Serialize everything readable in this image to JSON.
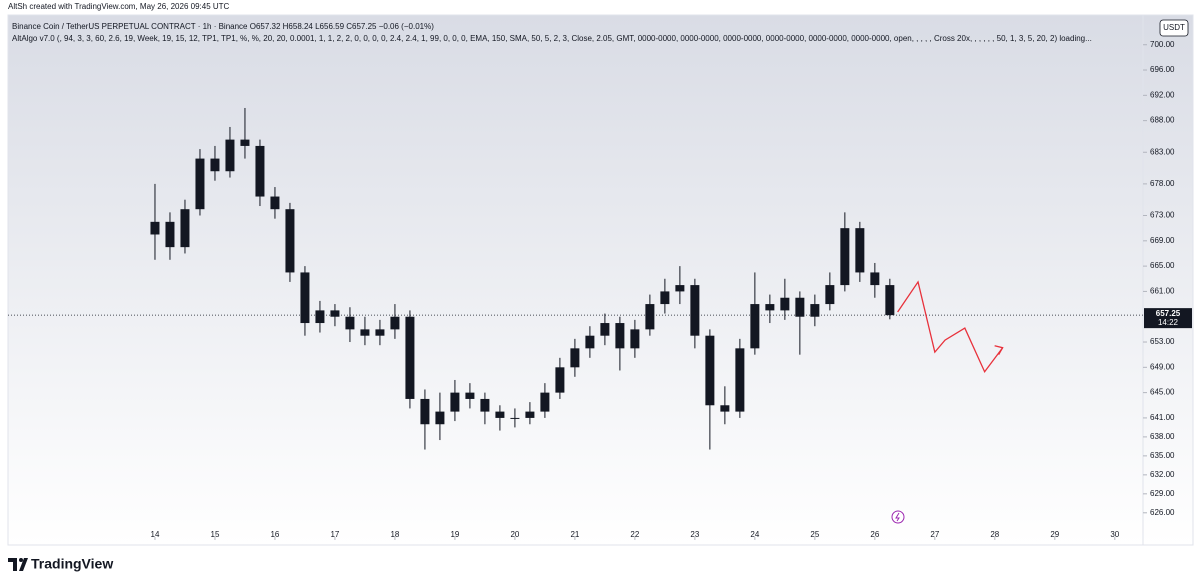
{
  "header": "AltSh created with TradingView.com, May 26, 2026 09:45 UTC",
  "chart_data": {
    "type": "candlestick",
    "title": "Binance Coin / TetherUS PERPETUAL CONTRACT · 1h · Binance  O657.32  H658.24  L656.59  C657.25  −0.06 (−0.01%)",
    "subtitle": "AltAlgo v7.0 (, 94, 3, 3, 60, 2.6, 19, Week, 19, 15, 12, TP1, TP1, %, %, 20, 20, 0.0001, 1, 1, 2, 2, 0, 0, 0, 0, 2.4, 2.4, 1, 99, 0, 0, 0, EMA, 150, SMA, 50, 5, 2, 3, Close, 2.05, GMT, 0000-0000, 0000-0000, 0000-0000, 0000-0000, 0000-0000, 0000-0000, open, , , , , Cross 20x, , , , , , 50, 1, 3, 5, 20, 2) loading...",
    "currency": "USDT",
    "color": "#131722",
    "x": [
      14,
      14.25,
      14.5,
      14.75,
      15,
      15.25,
      15.5,
      15.75,
      16,
      16.25,
      16.5,
      16.75,
      17,
      17.25,
      17.5,
      17.75,
      18,
      18.25,
      18.5,
      18.75,
      19,
      19.25,
      19.5,
      19.75,
      20,
      20.25,
      20.5,
      20.75,
      21,
      21.25,
      21.5,
      21.75,
      22,
      22.25,
      22.5,
      22.75,
      23,
      23.25,
      23.5,
      23.75,
      24,
      24.25,
      24.5,
      24.75,
      25,
      25.25,
      25.5,
      25.75,
      26,
      26.25
    ],
    "open": [
      670,
      672,
      668,
      674,
      682,
      680,
      685,
      684,
      676,
      674,
      664,
      656,
      658,
      657,
      655,
      654,
      655,
      657,
      644,
      640,
      642,
      645,
      644,
      642,
      641,
      641,
      642,
      645,
      649,
      652,
      654,
      656,
      652,
      655,
      659,
      661,
      662,
      654,
      643,
      642,
      652,
      659,
      658,
      660,
      657,
      659,
      662,
      671,
      664,
      662
    ],
    "high": [
      678,
      673.5,
      675.5,
      683.5,
      684,
      687,
      690,
      685,
      677.5,
      675,
      665,
      659.5,
      659,
      658.5,
      657,
      656.5,
      659,
      658,
      645.5,
      645,
      647,
      646.5,
      645,
      643,
      642.5,
      643.5,
      646.5,
      650.5,
      653.5,
      655.5,
      657.5,
      657,
      656.5,
      660.5,
      663,
      665,
      663,
      655,
      646,
      653.5,
      664,
      660.5,
      663,
      661,
      660.5,
      664,
      673.5,
      672,
      665.5,
      663
    ],
    "low": [
      666,
      666,
      667,
      673,
      678.5,
      679,
      682,
      674.5,
      672.5,
      662.5,
      654,
      654.5,
      655.5,
      653,
      652.5,
      652.5,
      653.5,
      642.5,
      636,
      637.5,
      640.5,
      642.5,
      640,
      639,
      639.5,
      640,
      641,
      644,
      647.5,
      650.5,
      652.5,
      648.5,
      650.5,
      654,
      657.5,
      659,
      652,
      636,
      640,
      641,
      651,
      656,
      656.5,
      651,
      655.5,
      658,
      661,
      662.5,
      660,
      656.59
    ],
    "close": [
      672,
      668,
      674,
      682,
      680,
      685,
      684,
      676,
      674,
      664,
      656,
      658,
      657,
      655,
      654,
      655,
      657,
      644,
      640,
      642,
      645,
      644,
      642,
      641,
      641,
      642,
      645,
      649,
      652,
      654,
      656,
      652,
      655,
      659,
      661,
      662,
      654,
      643,
      642,
      652,
      659,
      658,
      660,
      657,
      659,
      662,
      671,
      664,
      662,
      657.25
    ],
    "last_price": 657.25,
    "countdown": "14:22",
    "forecast": {
      "color": "#e8313b",
      "x": [
        26.38,
        26.72,
        27.0,
        27.17,
        27.5,
        27.83,
        28.13
      ],
      "values": [
        657.75,
        662.5,
        651.4,
        653.3,
        655.2,
        648.3,
        652.1
      ]
    },
    "xlim": [
      11.55,
      30.47
    ],
    "xticks": [
      14,
      15,
      16,
      17,
      18,
      19,
      20,
      21,
      22,
      23,
      24,
      25,
      26,
      27,
      28,
      29,
      30
    ],
    "ylim": [
      621.7,
      704.7
    ],
    "yticks": [
      {
        "value": 700,
        "label": "700.00"
      },
      {
        "value": 696,
        "label": "696.00"
      },
      {
        "value": 692,
        "label": "692.00"
      },
      {
        "value": 688,
        "label": "688.00"
      },
      {
        "value": 683,
        "label": "683.00"
      },
      {
        "value": 678,
        "label": "678.00"
      },
      {
        "value": 673,
        "label": "673.00"
      },
      {
        "value": 669,
        "label": "669.00"
      },
      {
        "value": 665,
        "label": "665.00"
      },
      {
        "value": 661,
        "label": "661.00"
      },
      {
        "value": 653,
        "label": "653.00"
      },
      {
        "value": 649,
        "label": "649.00"
      },
      {
        "value": 645,
        "label": "645.00"
      },
      {
        "value": 641,
        "label": "641.00"
      },
      {
        "value": 638,
        "label": "638.00"
      },
      {
        "value": 635,
        "label": "635.00"
      },
      {
        "value": 632,
        "label": "632.00"
      },
      {
        "value": 629,
        "label": "629.00"
      },
      {
        "value": 626,
        "label": "626.00"
      }
    ]
  },
  "footer": "TradingView"
}
